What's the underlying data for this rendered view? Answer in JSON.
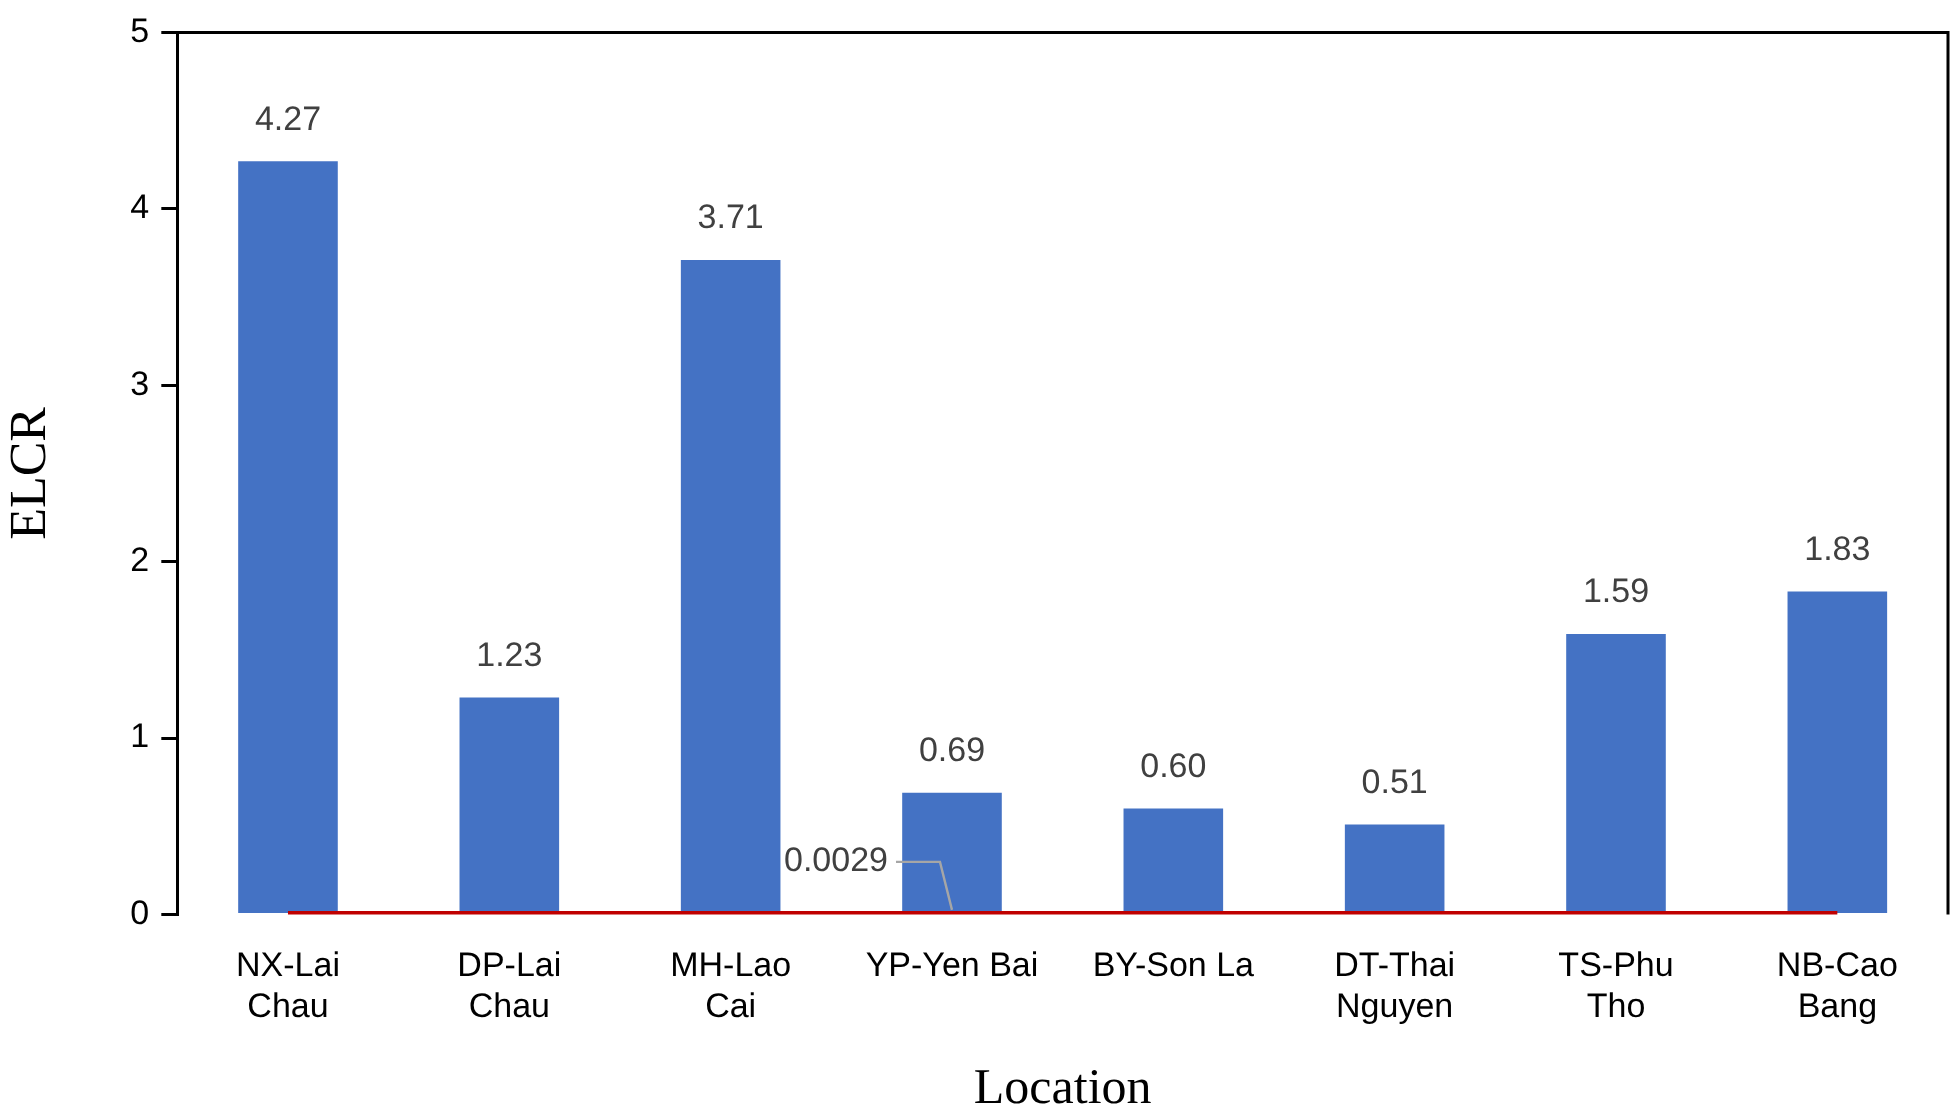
{
  "chart_data": {
    "type": "bar",
    "xlabel": "Location",
    "ylabel": "ELCR",
    "categories": [
      "NX-Lai Chau",
      "DP-Lai Chau",
      "MH-Lao Cai",
      "YP-Yen Bai",
      "BY-Son La",
      "DT-Thai Nguyen",
      "TS-Phu Tho",
      "NB-Cao Bang"
    ],
    "series": [
      {
        "color": "#4472c4",
        "values": [
          4.27,
          1.23,
          3.71,
          0.69,
          0.6,
          0.51,
          1.59,
          1.83
        ],
        "value_labels": [
          "4.27",
          "1.23",
          "3.71",
          "0.69",
          "0.60",
          "0.51",
          "1.59",
          "1.83"
        ]
      },
      {
        "type": "line",
        "color": "#c00000",
        "values": [
          0.0029,
          0.0029,
          0.0029,
          0.0029,
          0.0029,
          0.0029,
          0.0029,
          0.0029
        ],
        "value_labels": [
          null,
          null,
          null,
          "0.0029",
          null,
          null,
          null,
          null
        ]
      }
    ],
    "ylim": [
      0,
      5
    ],
    "yticks": [
      0,
      1,
      2,
      3,
      4,
      5
    ],
    "grid": false,
    "legend": false,
    "marker": "none"
  }
}
